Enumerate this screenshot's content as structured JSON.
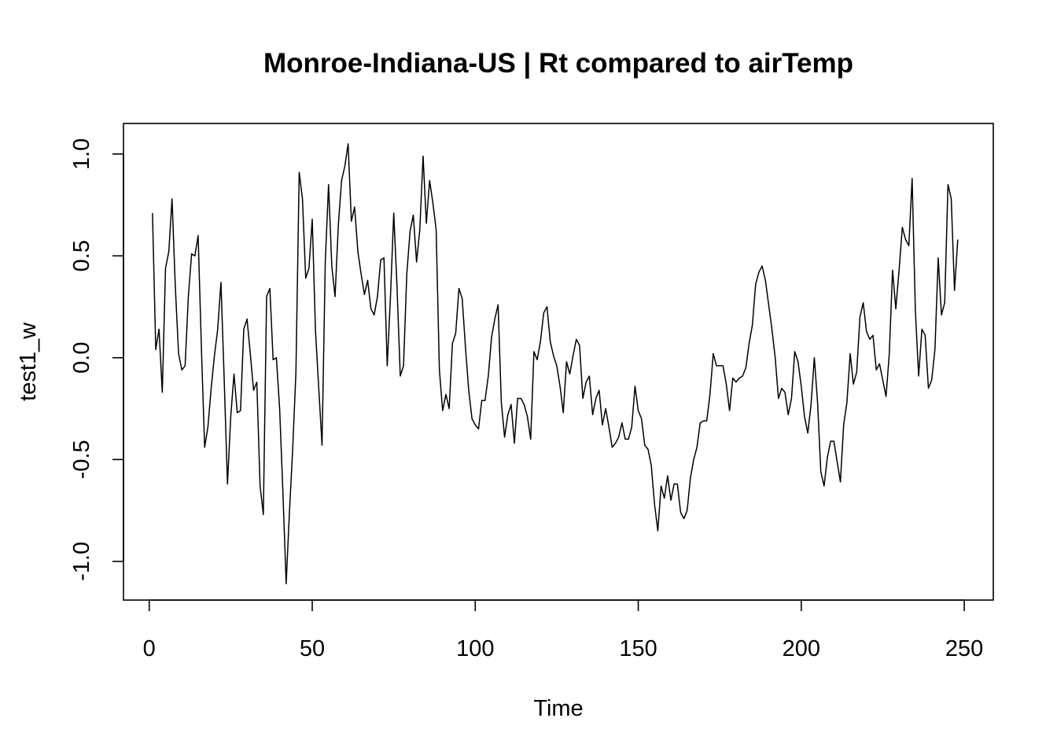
{
  "chart_data": {
    "type": "line",
    "title": "Monroe-Indiana-US | Rt compared to airTemp",
    "xlabel": "Time",
    "ylabel": "test1_w",
    "xlim": [
      -7.9,
      258.9
    ],
    "ylim": [
      -1.19,
      1.15
    ],
    "x_ticks": [
      0,
      50,
      100,
      150,
      200,
      250
    ],
    "y_ticks": [
      -1.0,
      -0.5,
      0.0,
      0.5,
      1.0
    ],
    "x_tick_labels": [
      "0",
      "50",
      "100",
      "150",
      "200",
      "250"
    ],
    "y_tick_labels": [
      "-1.0",
      "-0.5",
      "0.0",
      "0.5",
      "1.0"
    ],
    "grid": false,
    "legend": false,
    "series": [
      {
        "x_start": 1,
        "x_step": 1,
        "values": [
          0.71,
          0.04,
          0.14,
          -0.17,
          0.44,
          0.52,
          0.78,
          0.35,
          0.02,
          -0.06,
          -0.04,
          0.3,
          0.51,
          0.5,
          0.6,
          0.05,
          -0.44,
          -0.34,
          -0.15,
          0.01,
          0.14,
          0.37,
          -0.11,
          -0.62,
          -0.29,
          -0.08,
          -0.27,
          -0.26,
          0.14,
          0.19,
          0.02,
          -0.16,
          -0.12,
          -0.63,
          -0.77,
          0.3,
          0.34,
          -0.01,
          0.0,
          -0.25,
          -0.66,
          -1.11,
          -0.76,
          -0.45,
          -0.07,
          0.91,
          0.78,
          0.39,
          0.44,
          0.68,
          0.13,
          -0.15,
          -0.43,
          0.47,
          0.85,
          0.45,
          0.3,
          0.65,
          0.87,
          0.94,
          1.05,
          0.67,
          0.74,
          0.52,
          0.41,
          0.31,
          0.38,
          0.24,
          0.21,
          0.3,
          0.48,
          0.49,
          -0.04,
          0.3,
          0.71,
          0.35,
          -0.09,
          -0.04,
          0.41,
          0.62,
          0.7,
          0.47,
          0.63,
          0.99,
          0.66,
          0.87,
          0.76,
          0.63,
          -0.06,
          -0.26,
          -0.18,
          -0.25,
          0.07,
          0.12,
          0.34,
          0.29,
          0.05,
          -0.16,
          -0.3,
          -0.33,
          -0.35,
          -0.21,
          -0.21,
          -0.09,
          0.1,
          0.19,
          0.26,
          -0.22,
          -0.39,
          -0.28,
          -0.23,
          -0.42,
          -0.2,
          -0.2,
          -0.23,
          -0.29,
          -0.4,
          0.03,
          -0.01,
          0.08,
          0.22,
          0.25,
          0.08,
          0.01,
          -0.04,
          -0.14,
          -0.27,
          -0.02,
          -0.08,
          0.01,
          0.09,
          0.06,
          -0.2,
          -0.12,
          -0.09,
          -0.28,
          -0.2,
          -0.16,
          -0.33,
          -0.25,
          -0.34,
          -0.44,
          -0.42,
          -0.39,
          -0.32,
          -0.4,
          -0.4,
          -0.34,
          -0.14,
          -0.26,
          -0.3,
          -0.43,
          -0.45,
          -0.53,
          -0.72,
          -0.85,
          -0.63,
          -0.69,
          -0.58,
          -0.7,
          -0.62,
          -0.62,
          -0.76,
          -0.79,
          -0.75,
          -0.59,
          -0.5,
          -0.44,
          -0.32,
          -0.31,
          -0.31,
          -0.18,
          0.02,
          -0.04,
          -0.04,
          -0.04,
          -0.13,
          -0.26,
          -0.1,
          -0.12,
          -0.1,
          -0.09,
          -0.05,
          0.07,
          0.16,
          0.36,
          0.42,
          0.45,
          0.38,
          0.26,
          0.14,
          0.0,
          -0.2,
          -0.15,
          -0.17,
          -0.28,
          -0.2,
          0.03,
          -0.02,
          -0.14,
          -0.29,
          -0.37,
          -0.23,
          0.0,
          -0.22,
          -0.56,
          -0.63,
          -0.49,
          -0.41,
          -0.41,
          -0.51,
          -0.61,
          -0.33,
          -0.22,
          0.02,
          -0.13,
          -0.07,
          0.2,
          0.27,
          0.13,
          0.09,
          0.11,
          -0.06,
          -0.03,
          -0.11,
          -0.19,
          0.02,
          0.43,
          0.24,
          0.43,
          0.64,
          0.58,
          0.55,
          0.88,
          0.23,
          -0.09,
          0.14,
          0.11,
          -0.15,
          -0.11,
          0.04,
          0.49,
          0.21,
          0.27,
          0.85,
          0.78,
          0.33,
          0.58
        ]
      }
    ]
  }
}
